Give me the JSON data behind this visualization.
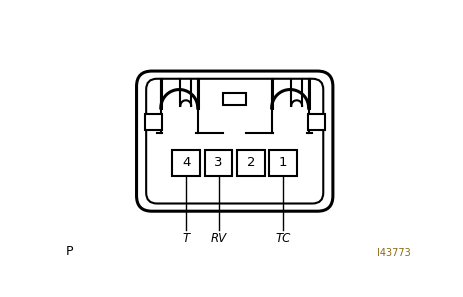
{
  "bg_color": "#ffffff",
  "line_color": "#000000",
  "fig_width": 4.64,
  "fig_height": 2.97,
  "label_P": "P",
  "label_ID": "I43773",
  "id_color": "#8B6914",
  "terminals": [
    "4",
    "3",
    "2",
    "1"
  ],
  "note_fontsize": 8.5,
  "terminal_fontsize": 9.5,
  "p_fontsize": 9,
  "id_fontsize": 7
}
